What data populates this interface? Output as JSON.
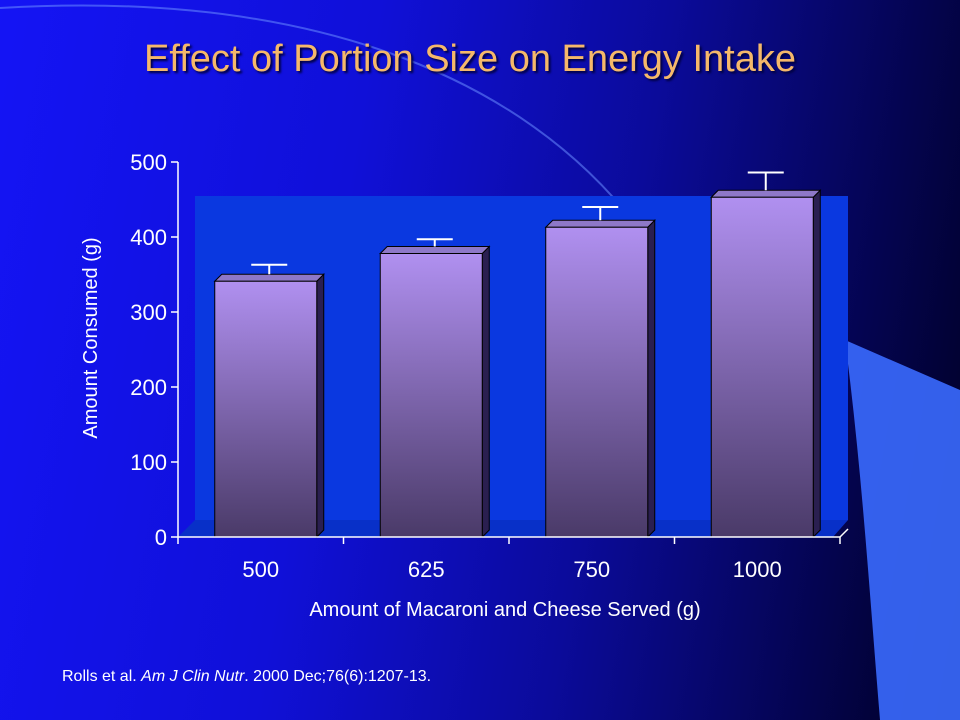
{
  "slide": {
    "title": "Effect of Portion Size on Energy Intake",
    "citation": {
      "authors": "Rolls et al.",
      "journal": "Am J Clin Nutr",
      "details": ". 2000 Dec;76(6):1207-13."
    }
  },
  "chart_data": {
    "type": "bar",
    "title": "",
    "categories": [
      "500",
      "625",
      "750",
      "1000"
    ],
    "series": [
      {
        "values": [
          341,
          378,
          413,
          453
        ],
        "error_upper": [
          363,
          397,
          440,
          486
        ]
      }
    ],
    "xlabel": "Amount of Macaroni and Cheese Served (g)",
    "ylabel": "Amount Consumed (g)",
    "ylim": [
      0,
      500
    ],
    "yticks": [
      0,
      100,
      200,
      300,
      400,
      500
    ],
    "grid": false,
    "legend": "none",
    "colors": {
      "bar_top": "#b090f0",
      "bar_bottom": "#4a3a68",
      "bar_side": "#2a1f50",
      "plot_wall": "#0a38e0",
      "axis_text": "#ffffff",
      "title": "#f5b86a"
    }
  }
}
